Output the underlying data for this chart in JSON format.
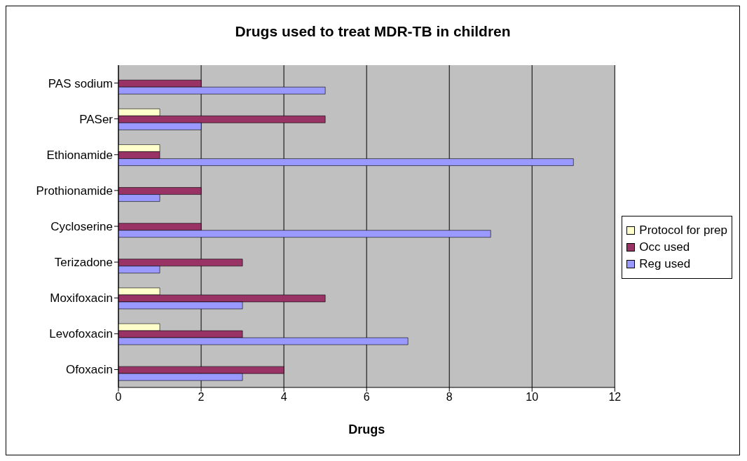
{
  "chart_data": {
    "type": "bar",
    "orientation": "horizontal",
    "title": "Drugs used to treat MDR-TB in children",
    "xlabel": "Drugs",
    "categories": [
      "PAS sodium",
      "PASer",
      "Ethionamide",
      "Prothionamide",
      "Cycloserine",
      "Terizadone",
      "Moxifoxacin",
      "Levofoxacin",
      "Ofoxacin"
    ],
    "series": [
      {
        "name": "Protocol for prep",
        "color": "#ffffcc",
        "values": [
          0,
          1,
          1,
          0,
          0,
          0,
          1,
          1,
          0
        ]
      },
      {
        "name": "Occ used",
        "color": "#993366",
        "values": [
          2,
          5,
          1,
          2,
          2,
          3,
          5,
          3,
          4
        ]
      },
      {
        "name": "Reg used",
        "color": "#9999ff",
        "values": [
          5,
          2,
          11,
          1,
          9,
          1,
          3,
          7,
          3
        ]
      }
    ],
    "xlim": [
      0,
      12
    ],
    "xticks": [
      0,
      2,
      4,
      6,
      8,
      10,
      12
    ],
    "grid": "x",
    "legend": "right"
  }
}
